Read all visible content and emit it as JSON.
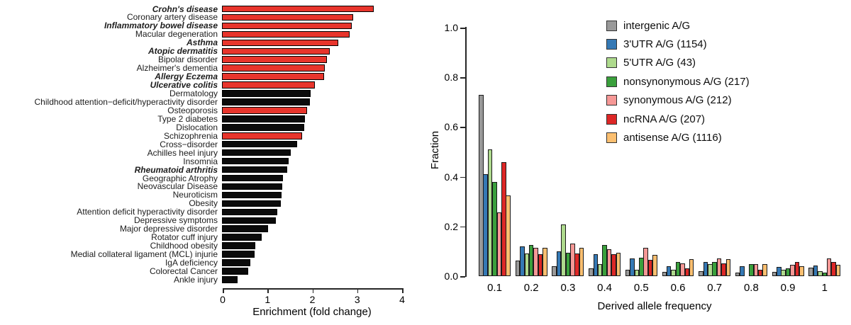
{
  "chart_data": [
    {
      "type": "bar",
      "orientation": "horizontal",
      "xlabel": "Enrichment (fold change)",
      "xlim": [
        0,
        4
      ],
      "x_ticks": [
        0,
        1,
        2,
        3,
        4
      ],
      "grid": false,
      "colors": {
        "red": "#e8352c",
        "black": "#0b0b0b"
      },
      "bars": [
        {
          "label": "Crohn's disease",
          "value": 3.38,
          "color": "red",
          "bold_italic": true
        },
        {
          "label": "Coronary artery disease",
          "value": 2.93,
          "color": "red",
          "bold_italic": false
        },
        {
          "label": "Inflammatory bowel disease",
          "value": 2.9,
          "color": "red",
          "bold_italic": true
        },
        {
          "label": "Macular degeneration",
          "value": 2.84,
          "color": "red",
          "bold_italic": false
        },
        {
          "label": "Asthma",
          "value": 2.6,
          "color": "red",
          "bold_italic": true
        },
        {
          "label": "Atopic dermatitis",
          "value": 2.4,
          "color": "red",
          "bold_italic": true
        },
        {
          "label": "Bipolar disorder",
          "value": 2.34,
          "color": "red",
          "bold_italic": false
        },
        {
          "label": "Alzheimer's dementia",
          "value": 2.3,
          "color": "red",
          "bold_italic": false
        },
        {
          "label": "Allergy Eczema",
          "value": 2.28,
          "color": "red",
          "bold_italic": true
        },
        {
          "label": "Ulcerative colitis",
          "value": 2.07,
          "color": "red",
          "bold_italic": true
        },
        {
          "label": "Dermatology",
          "value": 1.98,
          "color": "black",
          "bold_italic": false
        },
        {
          "label": "Childhood attention−deficit/hyperactivity disorder",
          "value": 1.96,
          "color": "black",
          "bold_italic": false
        },
        {
          "label": "Osteoporosis",
          "value": 1.9,
          "color": "red",
          "bold_italic": false
        },
        {
          "label": "Type 2 diabetes",
          "value": 1.85,
          "color": "black",
          "bold_italic": false
        },
        {
          "label": "Dislocation",
          "value": 1.84,
          "color": "black",
          "bold_italic": false
        },
        {
          "label": "Schizophrenia",
          "value": 1.79,
          "color": "red",
          "bold_italic": false
        },
        {
          "label": "Cross−disorder",
          "value": 1.68,
          "color": "black",
          "bold_italic": false
        },
        {
          "label": "Achilles heel injury",
          "value": 1.54,
          "color": "black",
          "bold_italic": false
        },
        {
          "label": "Insomnia",
          "value": 1.49,
          "color": "black",
          "bold_italic": false
        },
        {
          "label": "Rheumatoid arthritis",
          "value": 1.45,
          "color": "black",
          "bold_italic": true
        },
        {
          "label": "Geographic Atrophy",
          "value": 1.36,
          "color": "black",
          "bold_italic": false
        },
        {
          "label": "Neovascular Disease",
          "value": 1.35,
          "color": "black",
          "bold_italic": false
        },
        {
          "label": "Neuroticism",
          "value": 1.33,
          "color": "black",
          "bold_italic": false
        },
        {
          "label": "Obesity",
          "value": 1.31,
          "color": "black",
          "bold_italic": false
        },
        {
          "label": "Attention deficit hyperactivity disorder",
          "value": 1.24,
          "color": "black",
          "bold_italic": false
        },
        {
          "label": "Depressive symptoms",
          "value": 1.2,
          "color": "black",
          "bold_italic": false
        },
        {
          "label": "Major depressive disorder",
          "value": 1.03,
          "color": "black",
          "bold_italic": false
        },
        {
          "label": "Rotator cuff injury",
          "value": 0.88,
          "color": "black",
          "bold_italic": false
        },
        {
          "label": "Childhood obesity",
          "value": 0.74,
          "color": "black",
          "bold_italic": false
        },
        {
          "label": "Medial collateral ligament (MCL) injurie",
          "value": 0.73,
          "color": "black",
          "bold_italic": false
        },
        {
          "label": "IgA deficiency",
          "value": 0.64,
          "color": "black",
          "bold_italic": false
        },
        {
          "label": "Colorectal Cancer",
          "value": 0.58,
          "color": "black",
          "bold_italic": false
        },
        {
          "label": "Ankle injury",
          "value": 0.35,
          "color": "black",
          "bold_italic": false
        }
      ]
    },
    {
      "type": "bar",
      "grouped": true,
      "xlabel": "Derived allele frequency",
      "ylabel": "Fraction",
      "ylim": [
        0,
        1.0
      ],
      "y_ticks": [
        "0.0",
        "0.2",
        "0.4",
        "0.6",
        "0.8",
        "1.0"
      ],
      "categories": [
        "0.1",
        "0.2",
        "0.3",
        "0.4",
        "0.5",
        "0.6",
        "0.7",
        "0.8",
        "0.9",
        "1"
      ],
      "legend_position": "top-right",
      "grid": false,
      "series": [
        {
          "name": "intergenic A/G",
          "color": "#999999",
          "values": [
            0.73,
            0.062,
            0.04,
            0.031,
            0.025,
            0.018,
            0.02,
            0.015,
            0.018,
            0.035
          ]
        },
        {
          "name": "3'UTR A/G (1154)",
          "color": "#3579b5",
          "values": [
            0.41,
            0.121,
            0.1,
            0.088,
            0.07,
            0.04,
            0.056,
            0.04,
            0.038,
            0.044
          ]
        },
        {
          "name": "5'UTR A/G (43)",
          "color": "#aeda8d",
          "values": [
            0.51,
            0.09,
            0.209,
            0.048,
            0.026,
            0.026,
            0.048,
            0.0,
            0.025,
            0.02
          ]
        },
        {
          "name": "nonsynonymous A/G (217)",
          "color": "#3aa03c",
          "values": [
            0.38,
            0.126,
            0.095,
            0.124,
            0.075,
            0.056,
            0.058,
            0.048,
            0.032,
            0.015
          ]
        },
        {
          "name": "synonymous A/G (212)",
          "color": "#f69896",
          "values": [
            0.255,
            0.115,
            0.13,
            0.108,
            0.113,
            0.05,
            0.07,
            0.048,
            0.046,
            0.07
          ]
        },
        {
          "name": "ncRNA A/G (207)",
          "color": "#dd2726",
          "values": [
            0.46,
            0.088,
            0.092,
            0.088,
            0.065,
            0.032,
            0.052,
            0.026,
            0.056,
            0.056
          ]
        },
        {
          "name": "antisense A/G (1116)",
          "color": "#fbbf70",
          "values": [
            0.325,
            0.113,
            0.115,
            0.095,
            0.085,
            0.068,
            0.067,
            0.048,
            0.04,
            0.045
          ]
        }
      ]
    }
  ]
}
